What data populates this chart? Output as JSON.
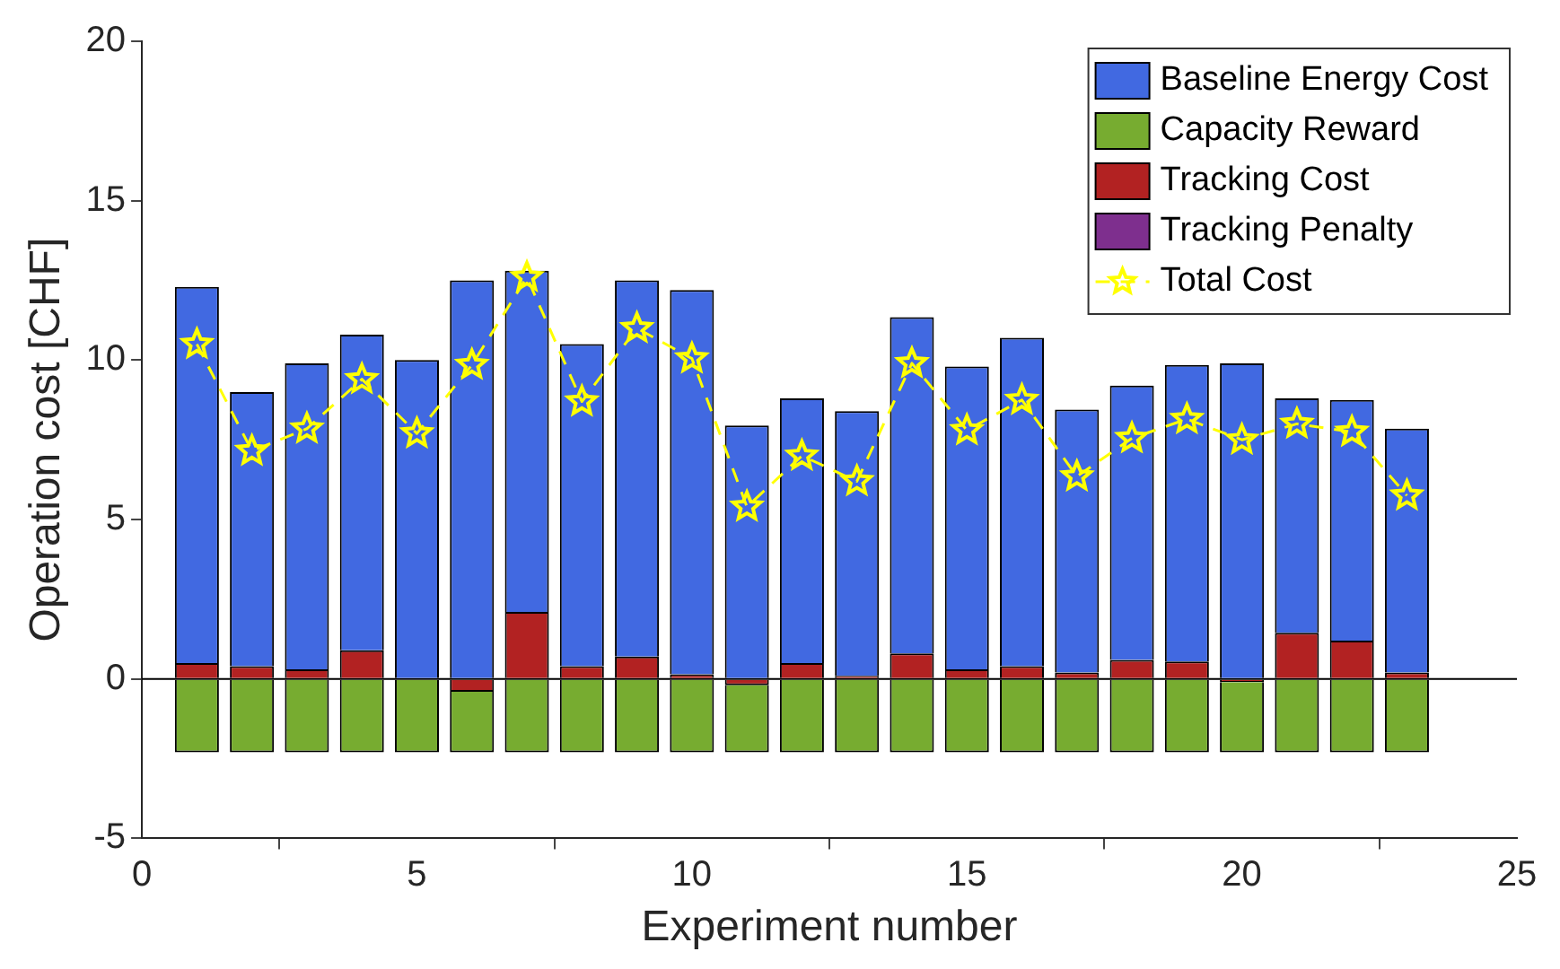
{
  "chart_data": {
    "type": "bar",
    "stacked": true,
    "xlabel": "Experiment number",
    "ylabel": "Operation cost [CHF]",
    "x": [
      1,
      2,
      3,
      4,
      5,
      6,
      7,
      8,
      9,
      10,
      11,
      12,
      13,
      14,
      15,
      16,
      17,
      18,
      19,
      20,
      21,
      22,
      23
    ],
    "xlim": [
      0,
      25
    ],
    "xticks": [
      0,
      5,
      10,
      15,
      20,
      25
    ],
    "ylim": [
      -5,
      20
    ],
    "yticks": [
      -5,
      0,
      5,
      10,
      15,
      20
    ],
    "grid": false,
    "legend": "top right",
    "ref_lines": [
      {
        "axis": "y",
        "value": 0,
        "color": "#000000"
      }
    ],
    "series": [
      {
        "name": "Total Cost",
        "type": "line",
        "color": "#ffff00",
        "marker": "star",
        "line_style": "dashed",
        "values": [
          10.5,
          7.15,
          7.85,
          9.4,
          7.7,
          9.85,
          12.6,
          8.7,
          11.0,
          10.05,
          5.4,
          7.0,
          6.2,
          9.9,
          7.8,
          8.75,
          6.35,
          7.55,
          8.15,
          7.5,
          8.0,
          7.75,
          5.75
        ]
      },
      {
        "name": "Tracking Penalty",
        "color": "#7e2f8e",
        "values": [
          0,
          0,
          0,
          0,
          0,
          0,
          0,
          0,
          0,
          0,
          0,
          0,
          0,
          0,
          0,
          0,
          0,
          0,
          0,
          0,
          0,
          0,
          0
        ]
      },
      {
        "name": "Tracking Cost",
        "color": "#b22222",
        "values": [
          0.5,
          0.4,
          0.3,
          0.9,
          0,
          -0.4,
          2.1,
          0.4,
          0.7,
          0.15,
          -0.2,
          0.5,
          0.1,
          0.8,
          0.3,
          0.4,
          0.2,
          0.6,
          0.55,
          -0.1,
          1.45,
          1.2,
          0.2
        ]
      },
      {
        "name": "Capacity Reward",
        "color": "#77ac30",
        "values": [
          -2.3,
          -2.3,
          -2.3,
          -2.3,
          -2.3,
          -1.9,
          -2.3,
          -2.3,
          -2.3,
          -2.3,
          -2.1,
          -2.3,
          -2.3,
          -2.3,
          -2.3,
          -2.3,
          -2.3,
          -2.3,
          -2.3,
          -2.2,
          -2.3,
          -2.3,
          -2.3
        ]
      },
      {
        "name": "Baseline Energy Cost",
        "color": "#4169e1",
        "values": [
          11.8,
          8.6,
          9.6,
          9.9,
          10.0,
          12.5,
          10.7,
          10.1,
          11.8,
          12.05,
          7.95,
          8.3,
          8.3,
          10.55,
          9.5,
          10.3,
          8.25,
          8.6,
          9.3,
          9.9,
          7.35,
          7.55,
          7.65
        ]
      }
    ]
  }
}
